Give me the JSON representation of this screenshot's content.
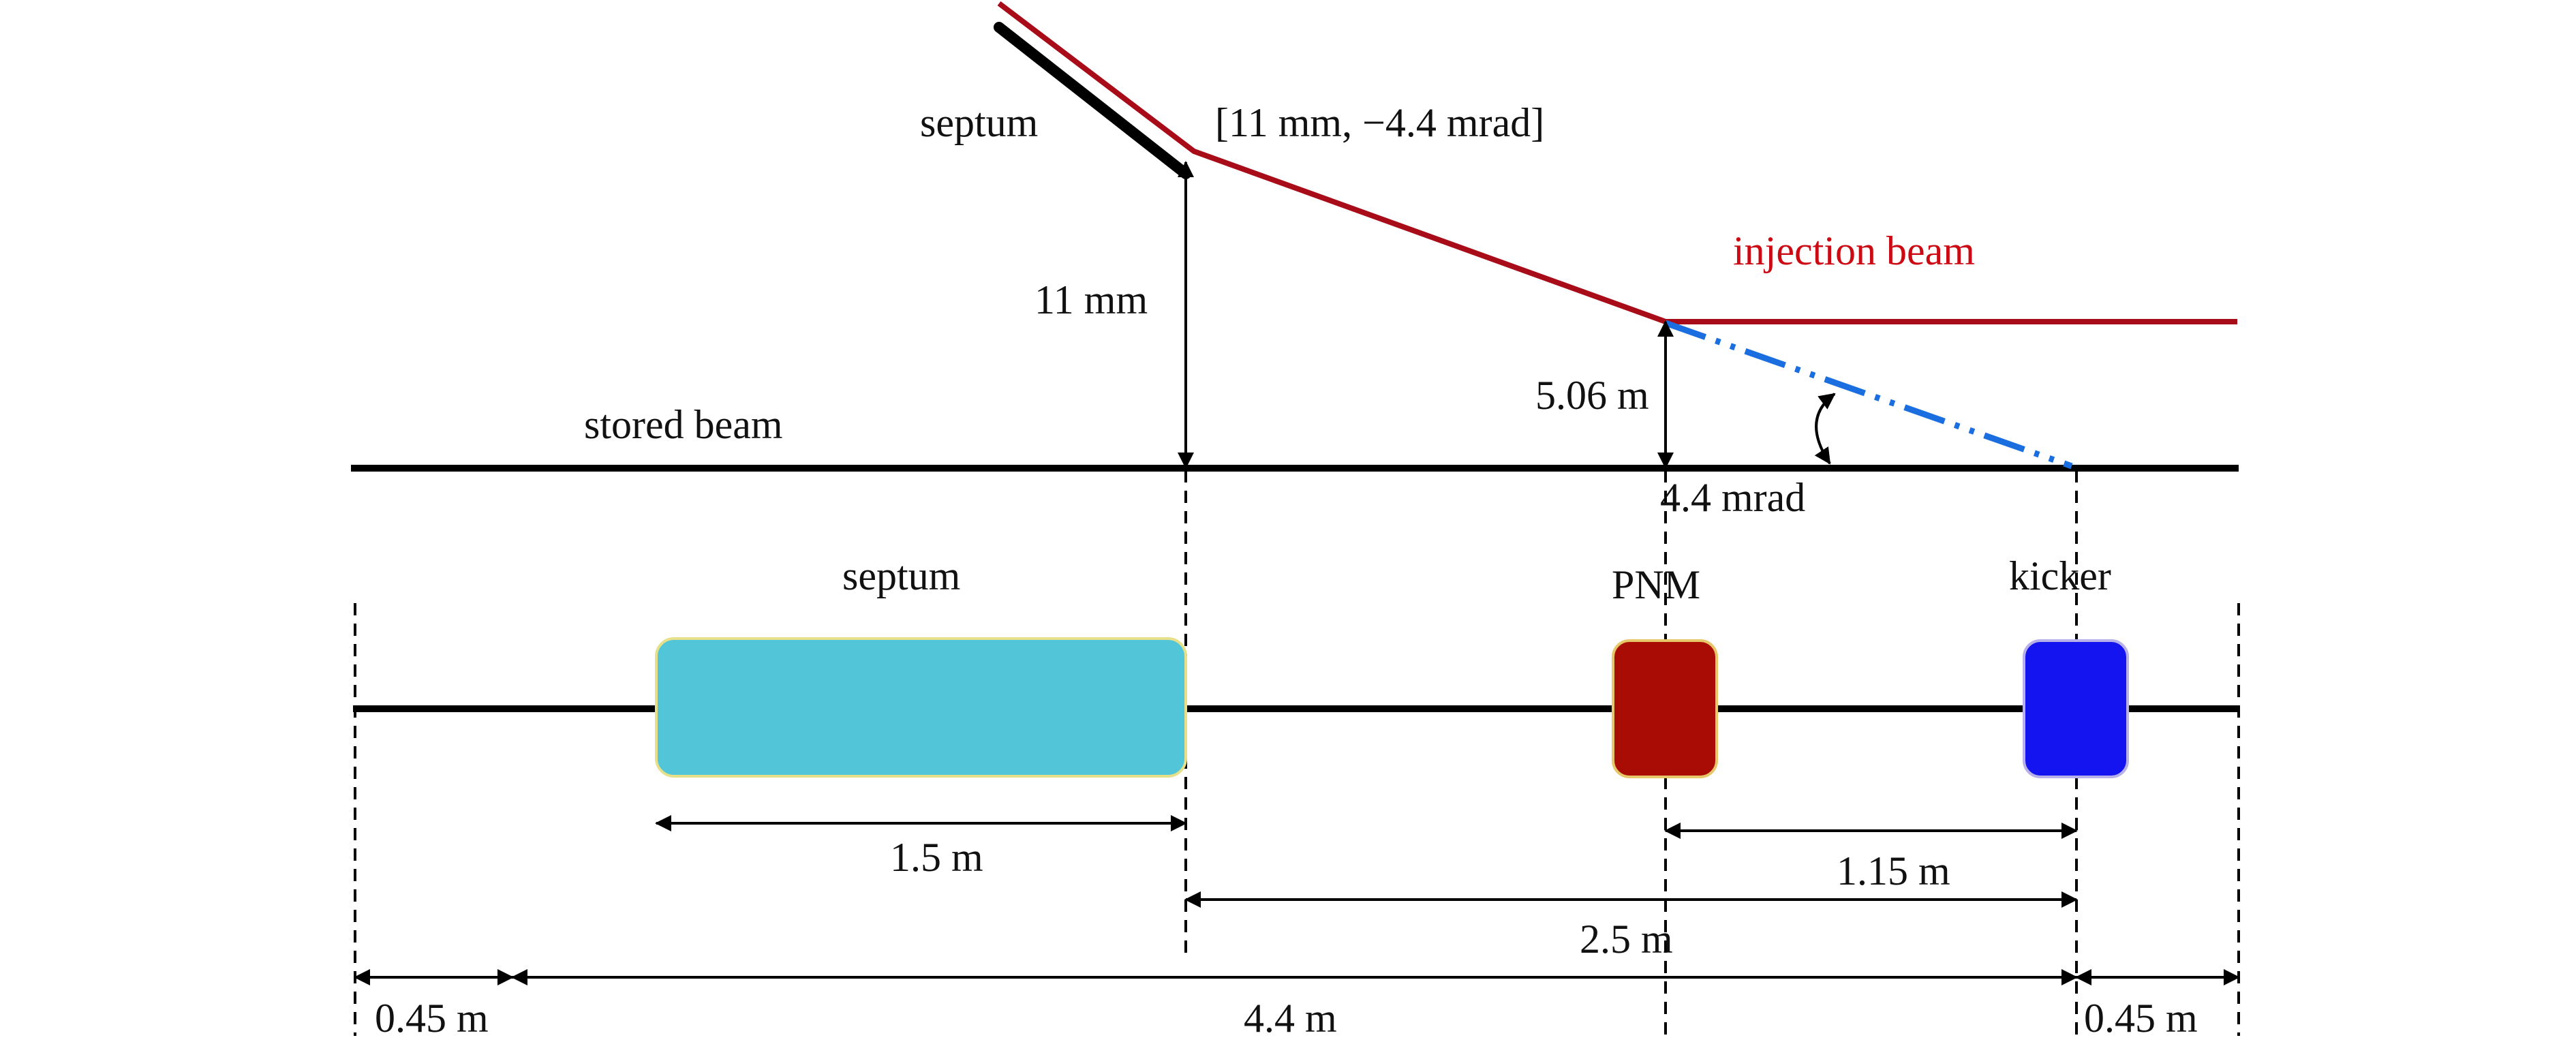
{
  "labels": {
    "septum_top": "septum",
    "septum_point": "[11 mm, −4.4 mrad]",
    "injection_beam": "injection beam",
    "offset_11mm": "11 mm",
    "offset_506": "5.06 m",
    "stored_beam": "stored beam",
    "angle": "4.4 mrad",
    "septum_box": "septum",
    "pnm": "PNM",
    "kicker": "kicker",
    "len_septum": "1.5 m",
    "len_pnm_kicker": "1.15 m",
    "len_septum_kicker": "2.5 m",
    "len_left": "0.45 m",
    "len_total": "4.4 m",
    "len_right": "0.45 m"
  },
  "colors": {
    "injection_beam": "#a80c18",
    "injection_text": "#cc0a14",
    "kick_projection": "#1a6ee0",
    "septum_block": "#52c6d8",
    "septum_block_border": "#e6e08a",
    "pnm_block": "#a80c04",
    "pnm_block_border": "#e6c86a",
    "kicker_block": "#1414f0",
    "kicker_block_border": "#b8b0e8",
    "line": "#000000"
  },
  "elements": [
    "septum",
    "PNM",
    "kicker"
  ]
}
